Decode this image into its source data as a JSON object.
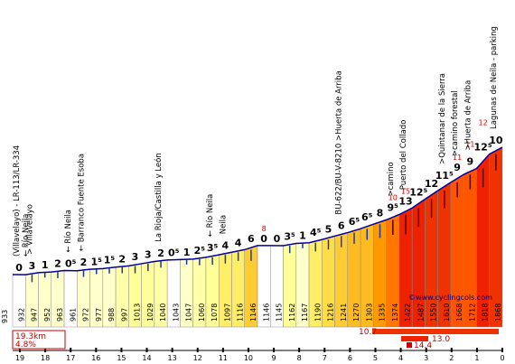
{
  "chart_data": {
    "type": "area",
    "title": "",
    "xlabel": "",
    "ylabel": "",
    "x_range_km": [
      19.3,
      0
    ],
    "km_ticks": [
      "19",
      "18",
      "17",
      "16",
      "15",
      "14",
      "13",
      "12",
      "11",
      "10",
      "9",
      "8",
      "7",
      "6",
      "5",
      "4",
      "3",
      "2",
      "1",
      "0"
    ],
    "segments": [
      {
        "grade": "0",
        "end_alt": "932",
        "color": "#ffffff"
      },
      {
        "grade": "3",
        "end_alt": "947",
        "color": "#ffffcc"
      },
      {
        "grade": "1",
        "end_alt": "952",
        "color": "#ffffcc"
      },
      {
        "grade": "2",
        "end_alt": "963",
        "color": "#ffffcc"
      },
      {
        "grade": "0⁵",
        "end_alt": "961",
        "color": "#ffffff"
      },
      {
        "grade": "2",
        "end_alt": "972",
        "color": "#ffffcc"
      },
      {
        "grade": "1⁵",
        "end_alt": "977",
        "color": "#ffffcc"
      },
      {
        "grade": "1⁵",
        "end_alt": "988",
        "color": "#ffffcc"
      },
      {
        "grade": "2",
        "end_alt": "997",
        "color": "#ffffaa"
      },
      {
        "grade": "3",
        "end_alt": "1013",
        "color": "#ffff99"
      },
      {
        "grade": "3",
        "end_alt": "1029",
        "color": "#ffff99"
      },
      {
        "grade": "2",
        "end_alt": "1040",
        "color": "#ffffaa"
      },
      {
        "grade": "0⁵",
        "end_alt": "1043",
        "color": "#ffffff"
      },
      {
        "grade": "1",
        "end_alt": "1047",
        "color": "#ffffcc"
      },
      {
        "grade": "2⁵",
        "end_alt": "1060",
        "color": "#ffffaa"
      },
      {
        "grade": "3⁵",
        "end_alt": "1078",
        "color": "#ffff99"
      },
      {
        "grade": "4",
        "end_alt": "1097",
        "color": "#ffee66"
      },
      {
        "grade": "4",
        "end_alt": "1116",
        "color": "#ffee66"
      },
      {
        "grade": "6",
        "end_alt": "1146",
        "color": "#ffcc33"
      },
      {
        "grade": "0",
        "end_alt": "1146",
        "color": "#ffffff"
      },
      {
        "grade": "0",
        "end_alt": "1145",
        "color": "#ffffff"
      },
      {
        "grade": "3⁵",
        "end_alt": "1162",
        "color": "#ffff99"
      },
      {
        "grade": "1",
        "end_alt": "1167",
        "color": "#ffffcc"
      },
      {
        "grade": "4⁵",
        "end_alt": "1190",
        "color": "#ffee66"
      },
      {
        "grade": "5",
        "end_alt": "1216",
        "color": "#ffdd44"
      },
      {
        "grade": "6",
        "end_alt": "1241",
        "color": "#ffcc33"
      },
      {
        "grade": "6⁵",
        "end_alt": "1270",
        "color": "#ffbb22"
      },
      {
        "grade": "6⁵",
        "end_alt": "1303",
        "color": "#ffbb22"
      },
      {
        "grade": "8",
        "end_alt": "1335",
        "color": "#ff9900"
      },
      {
        "grade": "9⁵",
        "end_alt": "1374",
        "color": "#ff7700"
      },
      {
        "grade": "13",
        "end_alt": "1422",
        "color": "#ee2200"
      },
      {
        "grade": "12⁵",
        "end_alt": "1487",
        "color": "#ee2200"
      },
      {
        "grade": "12",
        "end_alt": "1550",
        "color": "#ee3300"
      },
      {
        "grade": "11⁵",
        "end_alt": "1610",
        "color": "#ee3300"
      },
      {
        "grade": "9",
        "end_alt": "1668",
        "color": "#ff5500"
      },
      {
        "grade": "9",
        "end_alt": "1712",
        "color": "#ff5500"
      },
      {
        "grade": "12⁵",
        "end_alt": "1818",
        "color": "#ee2200"
      },
      {
        "grade": "10",
        "end_alt": "1868",
        "color": "#ee3300"
      }
    ],
    "red_grade_notes": [
      "8",
      "10",
      "15",
      "11",
      "11",
      "12"
    ],
    "start_alt": "933",
    "annotations": [
      "(Villavelayo) - LR-113/LR-334",
      "← Río Neila",
      "> Villavelayo",
      "← Río Neila",
      "← Barranco Fuente Esoba",
      "La Rioja/Castilla y León",
      "← Río Neila",
      "Neila",
      "BU-622/BU-V-8210 >Huerta de Arriba",
      ">camino",
      "Puerto del Collado",
      ">Quintanar de la Sierra",
      ">camino forestal",
      ">Huerta de Arriba",
      "Lagunas de Neila - parking"
    ],
    "stats": {
      "distance": "19.3km",
      "avg_grade": "4.8%",
      "bar_values": [
        "10.7",
        "13.0",
        "14.4"
      ]
    },
    "credit": "©www.cyclingcols.com"
  }
}
